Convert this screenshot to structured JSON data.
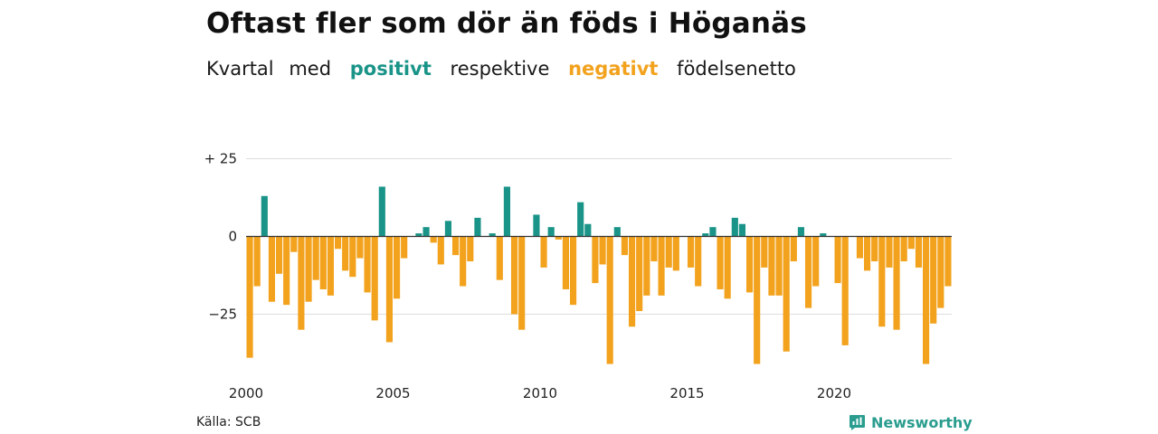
{
  "title": "Oftast fler som dör än föds i Höganäs",
  "subtitle": {
    "part1": "Kvartal",
    "part2": "med",
    "positive": "positivt",
    "part3": "respektive",
    "negative": "negativt",
    "part4": "födelsenetto"
  },
  "source": "Källa: SCB",
  "brand": {
    "name": "Newsworthy",
    "icon": "newsworthy-logo-icon"
  },
  "colors": {
    "positive": "#1a9488",
    "negative": "#f2a21d",
    "grid": "#dddddd",
    "zero": "#333333",
    "brand": "#2a9d8f"
  },
  "chart_data": {
    "type": "bar",
    "y_tick_values": [
      25,
      0,
      -25
    ],
    "y_tick_labels": [
      "+ 25",
      "0",
      "−25"
    ],
    "x_tick_labels": [
      "2000",
      "2005",
      "2010",
      "2015",
      "2020"
    ],
    "ylim": [
      -41,
      25
    ],
    "grid": true,
    "categories": [
      "2000 K1",
      "2000 K2",
      "2000 K3",
      "2000 K4",
      "2001 K1",
      "2001 K2",
      "2001 K3",
      "2001 K4",
      "2002 K1",
      "2002 K2",
      "2002 K3",
      "2002 K4",
      "2003 K1",
      "2003 K2",
      "2003 K3",
      "2003 K4",
      "2004 K1",
      "2004 K2",
      "2004 K3",
      "2004 K4",
      "2005 K1",
      "2005 K2",
      "2005 K3",
      "2005 K4",
      "2006 K1",
      "2006 K2",
      "2006 K3",
      "2006 K4",
      "2007 K1",
      "2007 K2",
      "2007 K3",
      "2007 K4",
      "2008 K1",
      "2008 K2",
      "2008 K3",
      "2008 K4",
      "2009 K1",
      "2009 K2",
      "2009 K3",
      "2009 K4",
      "2010 K1",
      "2010 K2",
      "2010 K3",
      "2010 K4",
      "2011 K1",
      "2011 K2",
      "2011 K3",
      "2011 K4",
      "2012 K1",
      "2012 K2",
      "2012 K3",
      "2012 K4",
      "2013 K1",
      "2013 K2",
      "2013 K3",
      "2013 K4",
      "2014 K1",
      "2014 K2",
      "2014 K3",
      "2014 K4",
      "2015 K1",
      "2015 K2",
      "2015 K3",
      "2015 K4",
      "2016 K1",
      "2016 K2",
      "2016 K3",
      "2016 K4",
      "2017 K1",
      "2017 K2",
      "2017 K3",
      "2017 K4",
      "2018 K1",
      "2018 K2",
      "2018 K3",
      "2018 K4",
      "2019 K1",
      "2019 K2",
      "2019 K3",
      "2019 K4",
      "2020 K1",
      "2020 K2",
      "2020 K3",
      "2020 K4",
      "2021 K1",
      "2021 K2",
      "2021 K3",
      "2021 K4",
      "2022 K1",
      "2022 K2",
      "2022 K3",
      "2022 K4",
      "2023 K1",
      "2023 K2",
      "2023 K3",
      "2023 K4"
    ],
    "values": [
      -39,
      -16,
      13,
      -21,
      -12,
      -22,
      -5,
      -30,
      -21,
      -14,
      -17,
      -19,
      -4,
      -11,
      -13,
      -7,
      -18,
      -27,
      16,
      -34,
      -20,
      -7,
      0,
      1,
      3,
      -2,
      -9,
      5,
      -6,
      -16,
      -8,
      6,
      0,
      1,
      -14,
      16,
      -25,
      -30,
      0,
      7,
      -10,
      3,
      -1,
      -17,
      -22,
      11,
      4,
      -15,
      -9,
      -41,
      3,
      -6,
      -29,
      -24,
      -19,
      -8,
      -19,
      -10,
      -11,
      0,
      -10,
      -16,
      1,
      3,
      -17,
      -20,
      6,
      4,
      -18,
      -41,
      -10,
      -19,
      -19,
      -37,
      -8,
      3,
      -23,
      -16,
      1,
      0,
      -15,
      -35,
      0,
      -7,
      -11,
      -8,
      -29,
      -10,
      -30,
      -8,
      -4,
      -10,
      -41,
      -28,
      -23,
      -16
    ]
  }
}
